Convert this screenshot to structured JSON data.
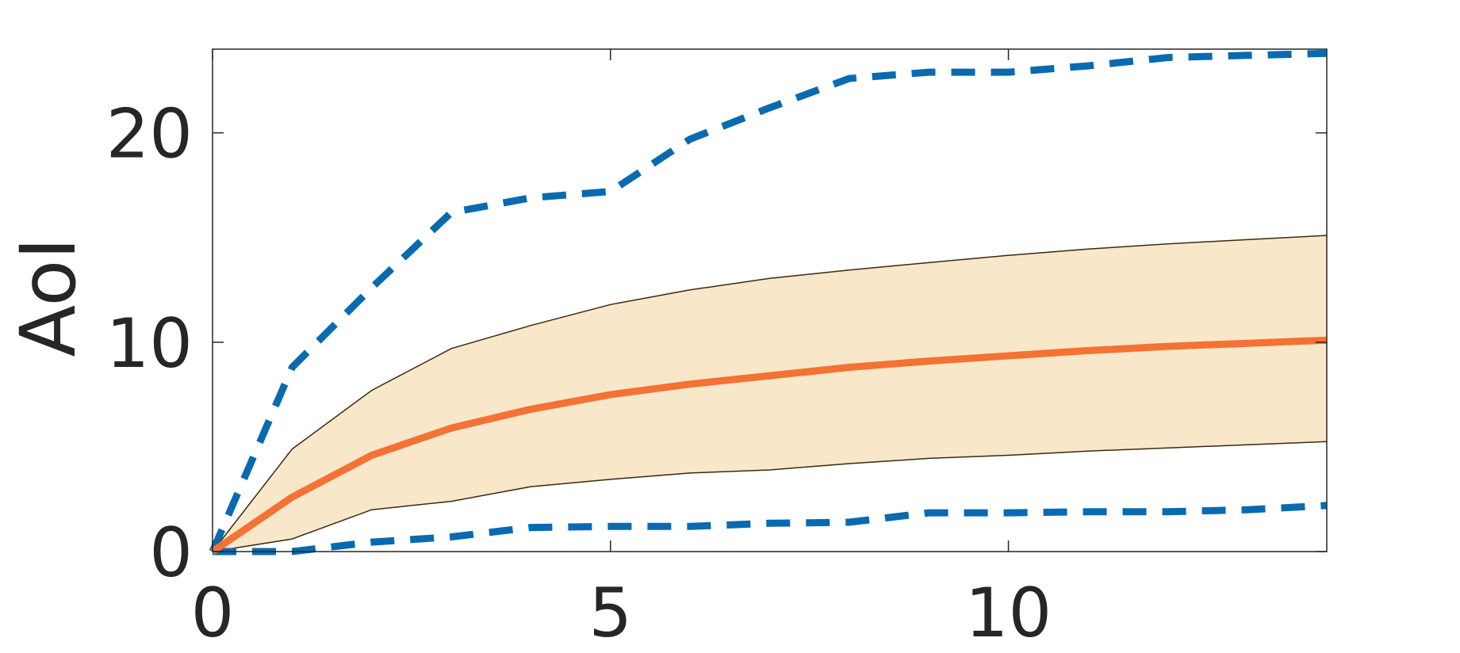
{
  "chart_data": {
    "type": "line",
    "title": "",
    "xlabel": "",
    "ylabel": "AoI",
    "xlim": [
      0,
      14
    ],
    "ylim": [
      0,
      24
    ],
    "xticks": [
      0,
      5,
      10
    ],
    "yticks": [
      0,
      10,
      20
    ],
    "xtick_labels": [
      "0",
      "5",
      "10"
    ],
    "ytick_labels": [
      "0",
      "10",
      "20"
    ],
    "grid": false,
    "box": true,
    "series": [
      {
        "kind": "line",
        "style": "solid",
        "color": "#F47234",
        "x": [
          0,
          1,
          2,
          3,
          4,
          5,
          6,
          7,
          8,
          9,
          10,
          11,
          12,
          13,
          14
        ],
        "values": [
          0,
          2.6,
          4.6,
          5.9,
          6.8,
          7.5,
          8.0,
          8.4,
          8.8,
          9.1,
          9.35,
          9.6,
          9.8,
          9.95,
          10.1
        ]
      },
      {
        "kind": "band",
        "color": "#F9E7CA",
        "edge_color": "#3a2a10",
        "x": [
          0,
          1,
          2,
          3,
          4,
          5,
          6,
          7,
          8,
          9,
          10,
          11,
          12,
          13,
          14
        ],
        "upper": [
          0,
          4.9,
          7.7,
          9.7,
          10.8,
          11.8,
          12.5,
          13.05,
          13.45,
          13.8,
          14.15,
          14.45,
          14.7,
          14.9,
          15.1
        ],
        "lower": [
          0,
          0.6,
          2.0,
          2.4,
          3.1,
          3.45,
          3.75,
          3.9,
          4.2,
          4.45,
          4.6,
          4.8,
          4.95,
          5.1,
          5.25
        ]
      },
      {
        "kind": "line",
        "style": "dashed",
        "color": "#0A6AB0",
        "x": [
          0,
          1,
          2,
          3,
          4,
          5,
          6,
          7,
          8,
          9,
          10,
          11,
          12,
          13,
          14
        ],
        "values": [
          0,
          8.8,
          12.6,
          16.2,
          16.9,
          17.2,
          19.7,
          21.2,
          22.6,
          22.9,
          22.9,
          23.2,
          23.6,
          23.7,
          23.8
        ]
      },
      {
        "kind": "line",
        "style": "dashed",
        "color": "#0A6AB0",
        "x": [
          0,
          1,
          2,
          3,
          4,
          5,
          6,
          7,
          8,
          9,
          10,
          11,
          12,
          13,
          14
        ],
        "values": [
          0,
          0,
          0.45,
          0.7,
          1.15,
          1.2,
          1.2,
          1.35,
          1.4,
          1.85,
          1.85,
          1.9,
          1.9,
          2.0,
          2.2
        ]
      }
    ]
  }
}
